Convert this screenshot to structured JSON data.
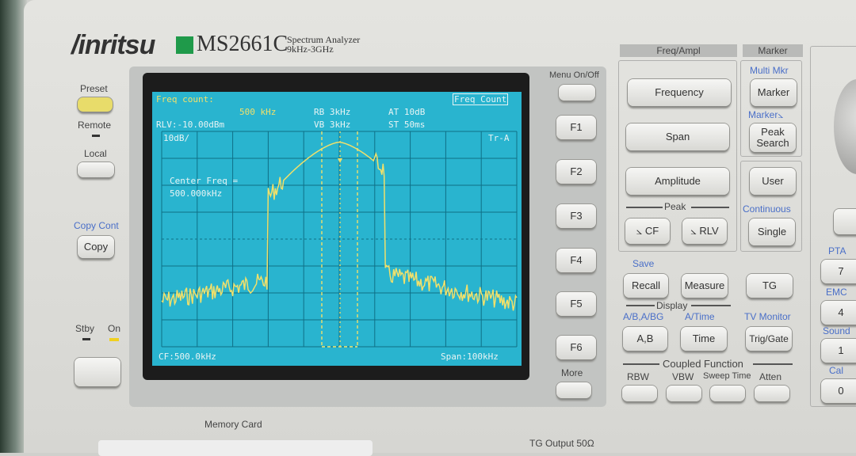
{
  "brand": {
    "logo": "/inritsu",
    "model": "MS2661C",
    "subtitle_line1": "Spectrum Analyzer",
    "subtitle_line2": "9kHz-3GHz"
  },
  "left": {
    "preset": "Preset",
    "remote": "Remote",
    "local": "Local",
    "copy_cont": "Copy Cont",
    "copy": "Copy",
    "stby": "Stby",
    "on": "On",
    "memory_card": "Memory Card"
  },
  "screen": {
    "freq_count_label": "Freq count:",
    "freq_count_value": "500 kHz",
    "mode_label": "Freq Count",
    "rlv": "RLV:-10.00dBm",
    "rb": "RB 3kHz",
    "vb": "VB 3kHz",
    "at": "AT 10dB",
    "st": "ST 50ms",
    "scale": "10dB/",
    "trace": "Tr-A",
    "center_line1": "Center Freq =",
    "center_line2": "500.000kHz",
    "cf": "CF:500.0kHz",
    "span": "Span:100kHz",
    "trace_color": "#f1e06a",
    "background_color": "#29b4cf"
  },
  "softkeys": {
    "menu": "Menu On/Off",
    "f1": "F1",
    "f2": "F2",
    "f3": "F3",
    "f4": "F4",
    "f5": "F5",
    "f6": "F6",
    "more": "More"
  },
  "freq_ampl": {
    "title": "Freq/Ampl",
    "frequency": "Frequency",
    "span": "Span",
    "amplitude": "Amplitude",
    "peak": "Peak",
    "cf": "⦣ CF",
    "rlv": "⦣ RLV"
  },
  "marker": {
    "title": "Marker",
    "multi": "Multi Mkr",
    "marker": "Marker",
    "marker_delta": "Marker⦣",
    "peak_search": "Peak Search",
    "user": "User",
    "continuous": "Continuous",
    "single": "Single"
  },
  "lower": {
    "save": "Save",
    "recall": "Recall",
    "measure": "Measure",
    "tg": "TG",
    "display": "Display",
    "ab_abbg": "A/B,A/BG",
    "a_time": "A/Time",
    "tv_monitor": "TV Monitor",
    "ab": "A,B",
    "time": "Time",
    "trig_gate": "Trig/Gate",
    "coupled": "Coupled Function",
    "rbw": "RBW",
    "vbw": "VBW",
    "sweep_time": "Sweep Time",
    "atten": "Atten",
    "tg_output": "TG Output 50Ω"
  },
  "keypad": {
    "pta": "PTA",
    "k7": "7",
    "emc": "EMC",
    "k4": "4",
    "sound": "Sound",
    "k1": "1",
    "cal": "Cal",
    "k0": "0"
  }
}
